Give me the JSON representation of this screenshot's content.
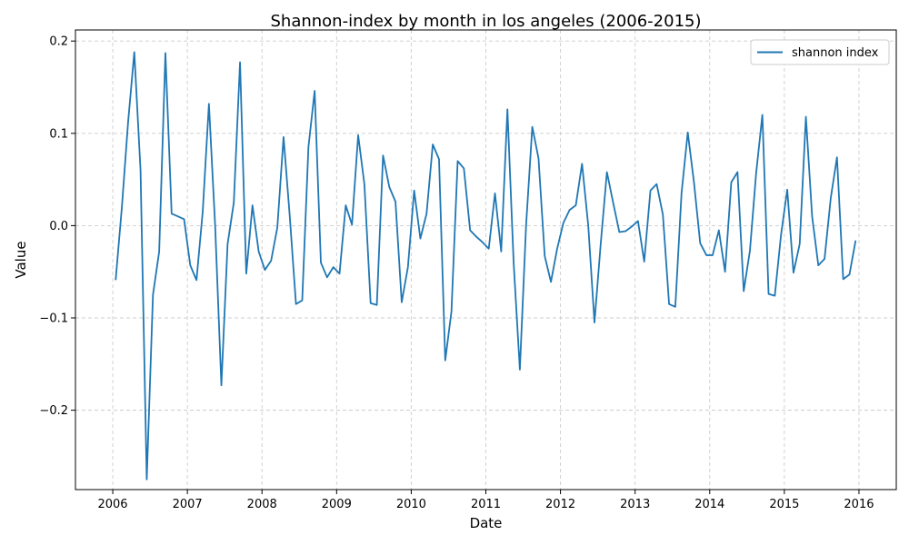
{
  "chart_data": {
    "type": "line",
    "title": "Shannon-index by month in los angeles (2006-2015)",
    "xlabel": "Date",
    "ylabel": "Value",
    "x_tick_labels": [
      "2006",
      "2007",
      "2008",
      "2009",
      "2010",
      "2011",
      "2012",
      "2013",
      "2014",
      "2015",
      "2016"
    ],
    "y_ticks": [
      -0.2,
      -0.1,
      0.0,
      0.1,
      0.2
    ],
    "y_tick_labels": [
      "−0.2",
      "−0.1",
      "0.0",
      "0.1",
      "0.2"
    ],
    "xlim": [
      "2005-07-01",
      "2016-07-01"
    ],
    "ylim": [
      -0.3,
      0.2
    ],
    "grid": true,
    "legend_position": "top-right",
    "series": [
      {
        "name": "shannon index",
        "color": "#1f77b4",
        "x": [
          "2006-01",
          "2006-02",
          "2006-03",
          "2006-04",
          "2006-05",
          "2006-06",
          "2006-07",
          "2006-08",
          "2006-09",
          "2006-10",
          "2006-11",
          "2006-12",
          "2007-01",
          "2007-02",
          "2007-03",
          "2007-04",
          "2007-05",
          "2007-06",
          "2007-07",
          "2007-08",
          "2007-09",
          "2007-10",
          "2007-11",
          "2007-12",
          "2008-01",
          "2008-02",
          "2008-03",
          "2008-04",
          "2008-05",
          "2008-06",
          "2008-07",
          "2008-08",
          "2008-09",
          "2008-10",
          "2008-11",
          "2008-12",
          "2009-01",
          "2009-02",
          "2009-03",
          "2009-04",
          "2009-05",
          "2009-06",
          "2009-07",
          "2009-08",
          "2009-09",
          "2009-10",
          "2009-11",
          "2009-12",
          "2010-01",
          "2010-02",
          "2010-03",
          "2010-04",
          "2010-05",
          "2010-06",
          "2010-07",
          "2010-08",
          "2010-09",
          "2010-10",
          "2010-11",
          "2010-12",
          "2011-01",
          "2011-02",
          "2011-03",
          "2011-04",
          "2011-05",
          "2011-06",
          "2011-07",
          "2011-08",
          "2011-09",
          "2011-10",
          "2011-11",
          "2011-12",
          "2012-01",
          "2012-02",
          "2012-03",
          "2012-04",
          "2012-05",
          "2012-06",
          "2012-07",
          "2012-08",
          "2012-09",
          "2012-10",
          "2012-11",
          "2012-12",
          "2013-01",
          "2013-02",
          "2013-03",
          "2013-04",
          "2013-05",
          "2013-06",
          "2013-07",
          "2013-08",
          "2013-09",
          "2013-10",
          "2013-11",
          "2013-12",
          "2014-01",
          "2014-02",
          "2014-03",
          "2014-04",
          "2014-05",
          "2014-06",
          "2014-07",
          "2014-08",
          "2014-09",
          "2014-10",
          "2014-11",
          "2014-12",
          "2015-01",
          "2015-02",
          "2015-03",
          "2015-04",
          "2015-05",
          "2015-06",
          "2015-07",
          "2015-08",
          "2015-09",
          "2015-10",
          "2015-11",
          "2015-12"
        ],
        "y": [
          -0.059,
          0.02,
          0.112,
          0.188,
          0.06,
          -0.275,
          -0.075,
          -0.028,
          0.187,
          0.013,
          0.01,
          0.007,
          -0.043,
          -0.059,
          0.015,
          0.132,
          0.0,
          -0.173,
          -0.02,
          0.025,
          0.177,
          -0.052,
          0.022,
          -0.028,
          -0.048,
          -0.038,
          -0.002,
          0.096,
          0.01,
          -0.085,
          -0.081,
          0.085,
          0.146,
          -0.04,
          -0.056,
          -0.045,
          -0.052,
          0.022,
          0.001,
          0.098,
          0.045,
          -0.084,
          -0.086,
          0.076,
          0.042,
          0.026,
          -0.083,
          -0.045,
          0.038,
          -0.014,
          0.013,
          0.088,
          0.072,
          -0.146,
          -0.093,
          0.07,
          0.062,
          -0.005,
          -0.012,
          -0.018,
          -0.025,
          0.035,
          -0.028,
          0.126,
          -0.04,
          -0.156,
          0.0,
          0.107,
          0.073,
          -0.033,
          -0.061,
          -0.025,
          0.003,
          0.017,
          0.022,
          0.067,
          0.0,
          -0.105,
          -0.02,
          0.058,
          0.025,
          -0.007,
          -0.006,
          -0.001,
          0.005,
          -0.039,
          0.038,
          0.045,
          0.012,
          -0.085,
          -0.088,
          0.035,
          0.101,
          0.047,
          -0.019,
          -0.032,
          -0.032,
          -0.005,
          -0.05,
          0.047,
          0.058,
          -0.071,
          -0.027,
          0.057,
          0.12,
          -0.074,
          -0.076,
          -0.01,
          0.039,
          -0.051,
          -0.02,
          0.118,
          0.01,
          -0.043,
          -0.036,
          0.03,
          0.074,
          -0.058,
          -0.053,
          -0.016
        ]
      }
    ]
  }
}
